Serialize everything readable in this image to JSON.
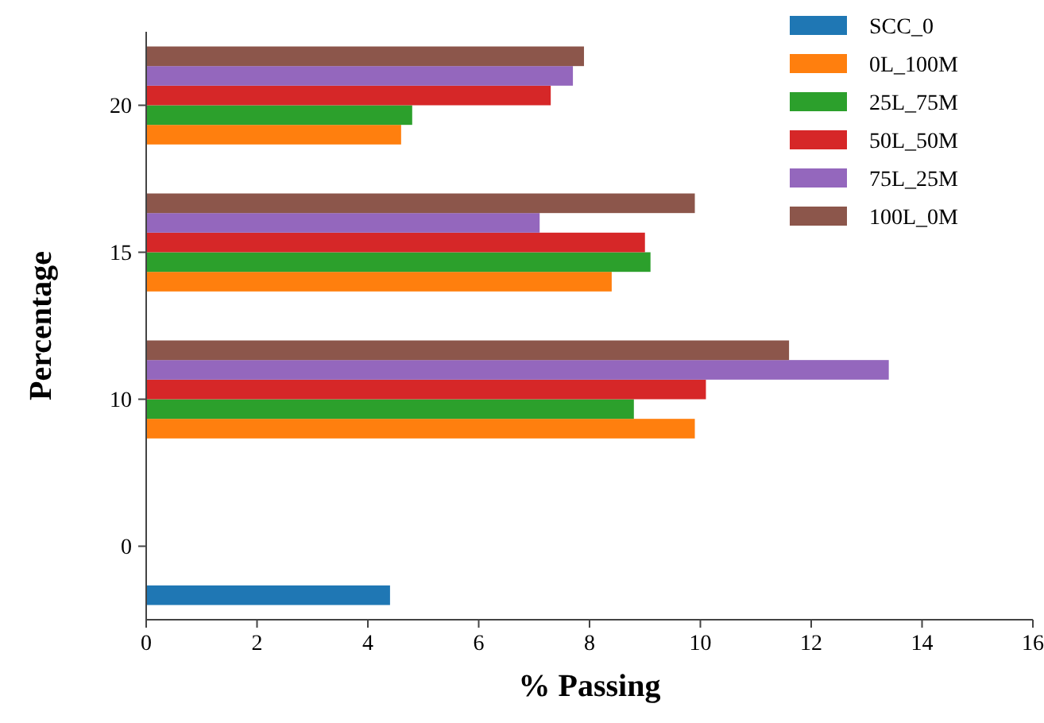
{
  "chart_data": {
    "type": "bar",
    "orientation": "horizontal",
    "xlabel": "% Passing",
    "ylabel": "Percentage",
    "categories": [
      "20",
      "15",
      "10",
      "0"
    ],
    "series": [
      {
        "name": "SCC_0",
        "color": "#1f77b4",
        "values": [
          null,
          null,
          null,
          4.4
        ]
      },
      {
        "name": "0L_100M",
        "color": "#ff7f0e",
        "values": [
          4.6,
          8.4,
          9.9,
          null
        ]
      },
      {
        "name": "25L_75M",
        "color": "#2ca02c",
        "values": [
          4.8,
          9.1,
          8.8,
          null
        ]
      },
      {
        "name": "50L_50M",
        "color": "#d62728",
        "values": [
          7.3,
          9.0,
          10.1,
          null
        ]
      },
      {
        "name": "75L_25M",
        "color": "#9467bd",
        "values": [
          7.7,
          7.1,
          13.4,
          null
        ]
      },
      {
        "name": "100L_0M",
        "color": "#8c564b",
        "values": [
          7.9,
          9.9,
          11.6,
          null
        ]
      }
    ],
    "xlim": [
      0,
      16
    ],
    "xticks": [
      0,
      2,
      4,
      6,
      8,
      10,
      12,
      14,
      16
    ],
    "legend": "top right",
    "grid": false
  }
}
